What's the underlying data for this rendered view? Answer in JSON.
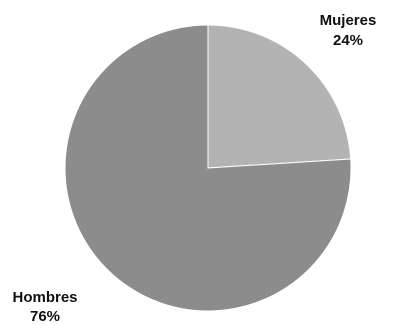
{
  "chart_data": {
    "type": "pie",
    "title": "",
    "legend": "none",
    "slices": [
      {
        "label": "Mujeres",
        "value": 24,
        "value_label": "24%",
        "color": "#b3b3b3"
      },
      {
        "label": "Hombres",
        "value": 76,
        "value_label": "76%",
        "color": "#8c8c8c"
      }
    ]
  }
}
